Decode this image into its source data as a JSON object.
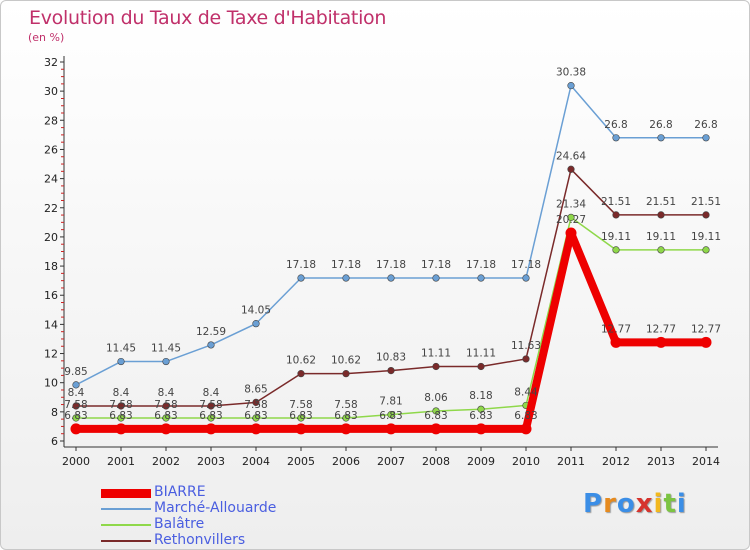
{
  "title": "Evolution du Taux de Taxe d'Habitation",
  "subtitle": "(en %)",
  "logo": {
    "letters": [
      "P",
      "r",
      "o",
      "x",
      "i",
      "t",
      "i"
    ],
    "colors": [
      "#3b8ee6",
      "#e68a1e",
      "#3b8ee6",
      "#d6342e",
      "#f2b81e",
      "#7cc442",
      "#3b8ee6"
    ]
  },
  "chart_data": {
    "type": "line",
    "title": "Evolution du Taux de Taxe d'Habitation",
    "ylabel": "(en %)",
    "x": [
      "2000",
      "2001",
      "2002",
      "2003",
      "2004",
      "2005",
      "2006",
      "2007",
      "2008",
      "2009",
      "2010",
      "2011",
      "2012",
      "2013",
      "2014"
    ],
    "ylim": [
      6,
      32
    ],
    "yticks": [
      6,
      8,
      10,
      12,
      14,
      16,
      18,
      20,
      22,
      24,
      26,
      28,
      30,
      32
    ],
    "grid": false,
    "legend": "bottom-left",
    "series": [
      {
        "name": "BIARRE",
        "color": "#ee0000",
        "values": [
          6.83,
          6.83,
          6.83,
          6.83,
          6.83,
          6.83,
          6.83,
          6.83,
          6.83,
          6.83,
          6.83,
          20.27,
          12.77,
          12.77,
          12.77
        ],
        "labels": [
          "6.83",
          "6.83",
          "6.83",
          "6.83",
          "6.83",
          "6.83",
          "6.83",
          "6.83",
          "6.83",
          "6.83",
          "6.83",
          "20.27",
          "12.77",
          "12.77",
          "12.77"
        ]
      },
      {
        "name": "Marché-Allouarde",
        "color": "#6a9fd4",
        "values": [
          9.85,
          11.45,
          11.45,
          12.59,
          14.05,
          17.18,
          17.18,
          17.18,
          17.18,
          17.18,
          17.18,
          30.38,
          26.8,
          26.8,
          26.8
        ],
        "labels": [
          "9.85",
          "11.45",
          "11.45",
          "12.59",
          "14.05",
          "17.18",
          "17.18",
          "17.18",
          "17.18",
          "17.18",
          "17.18",
          "30.38",
          "26.8",
          "26.8",
          "26.8"
        ]
      },
      {
        "name": "Balâtre",
        "color": "#8fd84a",
        "values": [
          7.58,
          7.58,
          7.58,
          7.58,
          7.58,
          7.58,
          7.58,
          7.81,
          8.06,
          8.18,
          8.44,
          21.34,
          19.11,
          19.11,
          19.11
        ],
        "labels": [
          "7.58",
          "7.58",
          "7.58",
          "7.58",
          "7.58",
          "7.58",
          "7.58",
          "7.81",
          "8.06",
          "8.18",
          "8.44",
          "21.34",
          "19.11",
          "19.11",
          "19.11"
        ]
      },
      {
        "name": "Rethonvillers",
        "color": "#7a2a2a",
        "values": [
          8.4,
          8.4,
          8.4,
          8.4,
          8.65,
          10.62,
          10.62,
          10.83,
          11.11,
          11.11,
          11.63,
          24.64,
          21.51,
          21.51,
          21.51
        ],
        "labels": [
          "8.4",
          "8.4",
          "8.4",
          "8.4",
          "8.65",
          "10.62",
          "10.62",
          "10.83",
          "11.11",
          "11.11",
          "11.63",
          "24.64",
          "21.51",
          "21.51",
          "21.51"
        ]
      }
    ]
  }
}
